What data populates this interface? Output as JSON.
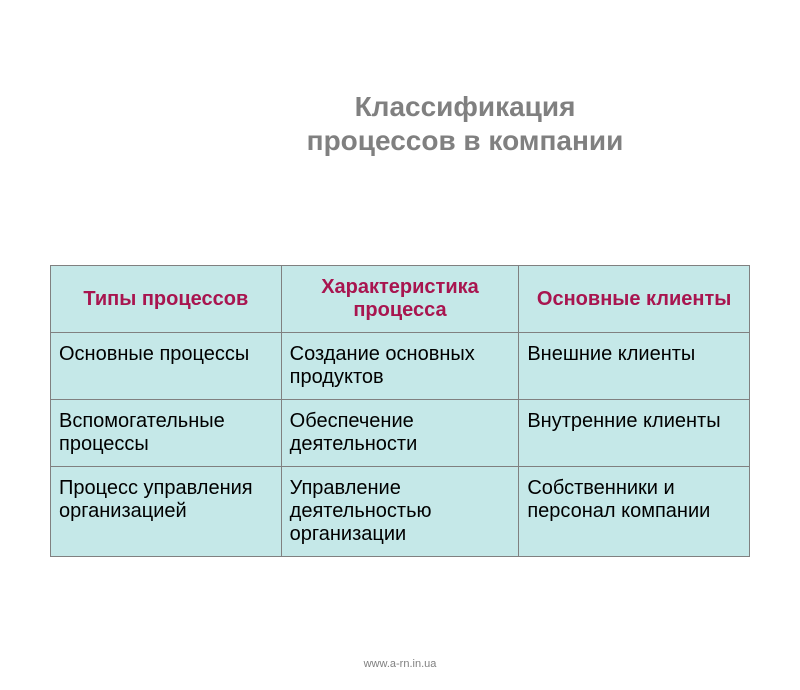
{
  "title_line1": "Классификация",
  "title_line2": "процессов в  компании",
  "table": {
    "columns": [
      {
        "label": "Типы процессов",
        "width": "33%"
      },
      {
        "label": "Характеристика процесса",
        "width": "34%"
      },
      {
        "label": "Основные клиенты",
        "width": "33%"
      }
    ],
    "rows": [
      [
        "Основные процессы",
        "Создание основных продуктов",
        "Внешние клиенты"
      ],
      [
        "Вспомогательные процессы",
        "Обеспечение деятельности",
        "Внутренние клиенты"
      ],
      [
        "Процесс управления организацией",
        "Управление деятельностью организации",
        "Собственники и персонал компании"
      ]
    ],
    "header_bg": "#c5e8e8",
    "header_color": "#a8154f",
    "cell_bg": "#c5e8e8",
    "cell_color": "#000000",
    "border_color": "#808080",
    "header_fontsize": 20,
    "cell_fontsize": 20
  },
  "title_color": "#808080",
  "title_fontsize": 28,
  "background_color": "#ffffff",
  "footer": "www.a-rn.in.ua",
  "footer_color": "#808080",
  "footer_fontsize": 11
}
